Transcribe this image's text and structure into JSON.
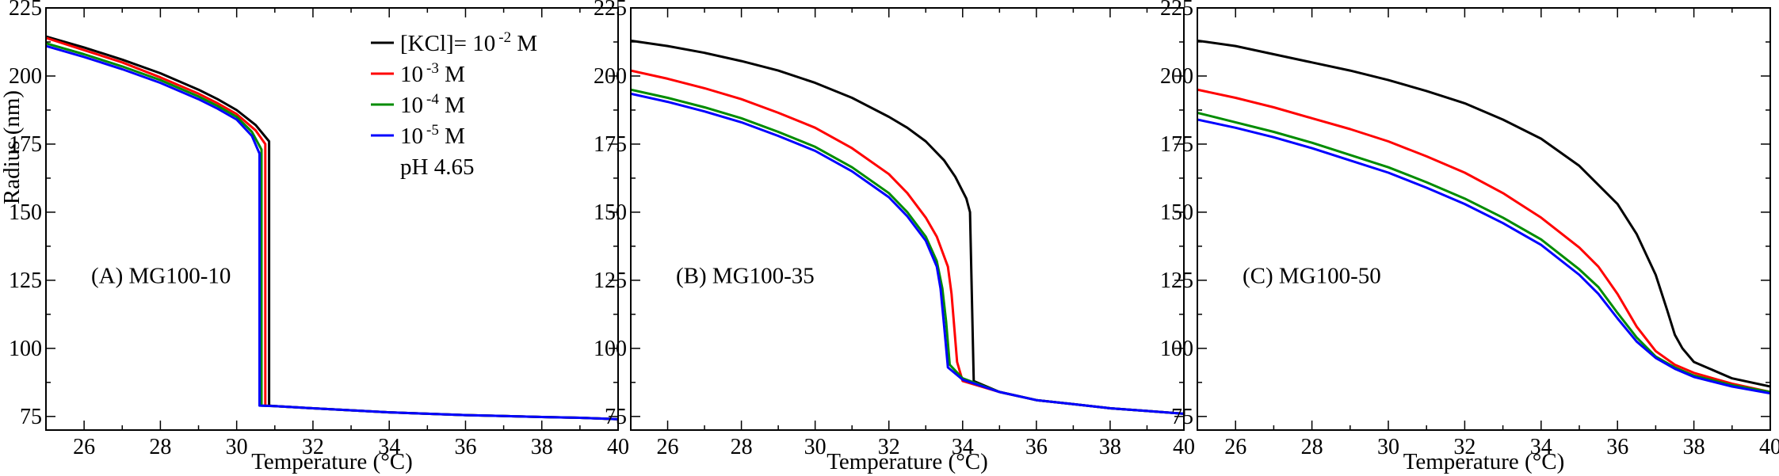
{
  "colors": {
    "c1": "#000000",
    "c2": "#ff0000",
    "c3": "#008c00",
    "c4": "#0000ff"
  },
  "ylabel": "Radius (nm)",
  "legend": {
    "entries": [
      {
        "main": "[KCl]= 10",
        "sup": "-2",
        "unit": " M",
        "color_key": "c1"
      },
      {
        "main": "10",
        "sup": "-3",
        "unit": " M",
        "color_key": "c2"
      },
      {
        "main": "10",
        "sup": "-4",
        "unit": " M",
        "color_key": "c3"
      },
      {
        "main": "10",
        "sup": "-5",
        "unit": " M",
        "color_key": "c4"
      }
    ],
    "note": "pH 4.65"
  },
  "chart_data": [
    {
      "type": "line",
      "panel_label": "(A) MG100-10",
      "xlabel": "Temperature (°C)",
      "ylabel": "Radius (nm)",
      "xlim": [
        25,
        40
      ],
      "ylim": [
        70,
        225
      ],
      "xticks": [
        26,
        28,
        30,
        32,
        34,
        36,
        38,
        40
      ],
      "yticks": [
        75,
        100,
        125,
        150,
        175,
        200,
        225
      ],
      "series": [
        {
          "color_key": "c1",
          "x": [
            25,
            26,
            27,
            28,
            29,
            29.5,
            30,
            30.5,
            30.85,
            30.85,
            31,
            32,
            34,
            36,
            38,
            39,
            40
          ],
          "y": [
            214.5,
            210.5,
            206,
            201,
            195,
            191.5,
            187.5,
            182,
            176,
            79,
            78.8,
            78,
            76.5,
            75.5,
            74.8,
            74.5,
            74
          ]
        },
        {
          "color_key": "c2",
          "x": [
            25,
            26,
            27,
            28,
            29,
            29.5,
            30,
            30.5,
            30.75,
            30.75,
            31,
            32,
            34,
            36,
            38,
            39,
            40
          ],
          "y": [
            214,
            209.5,
            205,
            199.5,
            193.5,
            190,
            186,
            180,
            175,
            79,
            78.8,
            78,
            76.5,
            75.5,
            74.8,
            74.5,
            74
          ]
        },
        {
          "color_key": "c3",
          "x": [
            25,
            26,
            27,
            28,
            29,
            29.5,
            30,
            30.4,
            30.65,
            30.65,
            31,
            32,
            34,
            36,
            38,
            39,
            40
          ],
          "y": [
            212,
            208,
            203.5,
            198.5,
            192.5,
            189,
            185,
            179.5,
            173,
            79,
            78.8,
            78,
            76.5,
            75.5,
            74.8,
            74.5,
            74
          ]
        },
        {
          "color_key": "c4",
          "x": [
            25,
            26,
            27,
            28,
            29,
            29.5,
            30,
            30.4,
            30.6,
            30.6,
            31,
            32,
            34,
            36,
            38,
            39,
            40
          ],
          "y": [
            211,
            207,
            202.5,
            197.5,
            191.5,
            188,
            184,
            178,
            171.5,
            79,
            78.8,
            78,
            76.5,
            75.5,
            74.8,
            74.5,
            74
          ]
        }
      ]
    },
    {
      "type": "line",
      "panel_label": "(B) MG100-35",
      "xlabel": "Temperature (°C)",
      "xlim": [
        25,
        40
      ],
      "ylim": [
        70,
        225
      ],
      "xticks": [
        26,
        28,
        30,
        32,
        34,
        36,
        38,
        40
      ],
      "yticks": [
        75,
        100,
        125,
        150,
        175,
        200,
        225
      ],
      "series": [
        {
          "color_key": "c1",
          "x": [
            25,
            26,
            27,
            28,
            29,
            30,
            31,
            32,
            32.5,
            33,
            33.5,
            33.8,
            34.1,
            34.2,
            34.3,
            35,
            36,
            37,
            38,
            39,
            40
          ],
          "y": [
            213,
            211,
            208.5,
            205.5,
            202,
            197.5,
            192,
            185,
            181,
            176,
            169,
            163,
            155,
            150,
            88,
            84,
            81,
            79.5,
            78,
            77,
            76
          ]
        },
        {
          "color_key": "c2",
          "x": [
            25,
            26,
            27,
            28,
            29,
            30,
            31,
            32,
            32.5,
            33,
            33.3,
            33.6,
            33.7,
            33.85,
            34,
            35,
            36,
            37,
            38,
            39,
            40
          ],
          "y": [
            202,
            199,
            195.5,
            191.5,
            186.5,
            181,
            173.5,
            164,
            157,
            148,
            141,
            130,
            120,
            95,
            88,
            84,
            81,
            79.5,
            78,
            77,
            76
          ]
        },
        {
          "color_key": "c3",
          "x": [
            25,
            26,
            27,
            28,
            29,
            30,
            31,
            32,
            32.5,
            33,
            33.3,
            33.45,
            33.55,
            33.65,
            34,
            35,
            36,
            37,
            38,
            39,
            40
          ],
          "y": [
            195,
            192,
            188.5,
            184.5,
            179.5,
            174,
            166.5,
            157,
            150,
            141,
            132,
            122,
            110,
            94,
            89,
            84,
            81,
            79.5,
            78,
            77,
            76
          ]
        },
        {
          "color_key": "c4",
          "x": [
            25,
            26,
            27,
            28,
            29,
            30,
            31,
            32,
            32.5,
            33,
            33.3,
            33.4,
            33.5,
            33.6,
            34,
            35,
            36,
            37,
            38,
            39,
            40
          ],
          "y": [
            193.5,
            190.5,
            187,
            183,
            178,
            172.5,
            165,
            155.5,
            148.5,
            139.5,
            130,
            122,
            108,
            93,
            88.5,
            84,
            81,
            79.5,
            78,
            77,
            76
          ]
        }
      ]
    },
    {
      "type": "line",
      "panel_label": "(C) MG100-50",
      "xlabel": "Temperature (°C)",
      "xlim": [
        25,
        40
      ],
      "ylim": [
        70,
        225
      ],
      "xticks": [
        26,
        28,
        30,
        32,
        34,
        36,
        38,
        40
      ],
      "yticks": [
        75,
        100,
        125,
        150,
        175,
        200,
        225
      ],
      "series": [
        {
          "color_key": "c1",
          "x": [
            25,
            26,
            27,
            28,
            29,
            30,
            31,
            32,
            33,
            34,
            35,
            36,
            36.5,
            37,
            37.3,
            37.5,
            37.7,
            38,
            39,
            40
          ],
          "y": [
            213,
            211,
            208,
            205,
            202,
            198.5,
            194.5,
            190,
            184,
            177,
            167,
            153,
            142,
            127,
            114,
            105,
            100,
            95,
            89,
            86
          ]
        },
        {
          "color_key": "c2",
          "x": [
            25,
            26,
            27,
            28,
            29,
            30,
            31,
            32,
            33,
            34,
            35,
            35.5,
            36,
            36.5,
            37,
            37.5,
            38,
            39,
            40
          ],
          "y": [
            195,
            192,
            188.5,
            184.5,
            180.5,
            176,
            170.5,
            164.5,
            157,
            148,
            137,
            130,
            120,
            108,
            99,
            94,
            91,
            87,
            84
          ]
        },
        {
          "color_key": "c3",
          "x": [
            25,
            26,
            27,
            28,
            29,
            30,
            31,
            32,
            33,
            34,
            35,
            35.5,
            36,
            36.5,
            37,
            37.5,
            38,
            39,
            40
          ],
          "y": [
            186.5,
            183,
            179.5,
            175.5,
            171,
            166.5,
            161,
            155,
            148,
            140,
            129,
            122.5,
            113,
            104,
            97,
            93,
            90,
            86.5,
            84
          ]
        },
        {
          "color_key": "c4",
          "x": [
            25,
            26,
            27,
            28,
            29,
            30,
            31,
            32,
            33,
            34,
            35,
            35.5,
            36,
            36.5,
            37,
            37.5,
            38,
            39,
            40
          ],
          "y": [
            184,
            181,
            177.5,
            173.5,
            169,
            164.5,
            159,
            153,
            146,
            138,
            127,
            120,
            111,
            102.5,
            96.5,
            92.5,
            89.5,
            86,
            83.5
          ]
        }
      ]
    }
  ]
}
